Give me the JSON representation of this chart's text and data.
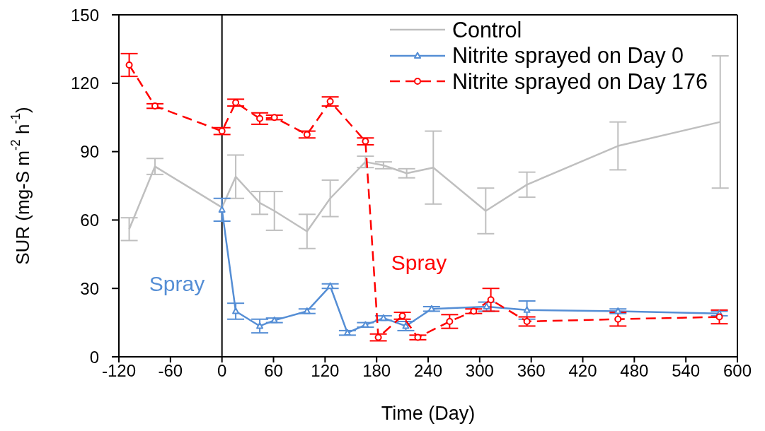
{
  "chart_data": {
    "type": "line",
    "xlabel": "Time (Day)",
    "ylabel": "SUR (mg-S m$^{-2}$ h$^{-1}$)",
    "xlim": [
      -120,
      600
    ],
    "xticks": [
      -120,
      -60,
      0,
      60,
      120,
      180,
      240,
      300,
      360,
      420,
      480,
      540,
      600
    ],
    "ylim": [
      0,
      150
    ],
    "yticks": [
      0,
      30,
      60,
      90,
      120,
      150
    ],
    "legend": "top right",
    "ref_lines": [
      {
        "axis": "x",
        "value": 0,
        "color": "#000000"
      }
    ],
    "annotations": [
      "Spray",
      "Spray"
    ],
    "series": [
      {
        "name": "Control",
        "color": "#bfbfbf",
        "marker": "none",
        "line_style": "solid",
        "x": [
          -108,
          -78,
          0,
          16,
          44,
          61,
          99,
          126,
          167,
          188,
          215,
          246,
          307,
          355,
          461,
          580
        ],
        "values": [
          56,
          83.5,
          65.5,
          79,
          67.5,
          64,
          55,
          69.5,
          85.5,
          84,
          80.5,
          83,
          64,
          75.5,
          92.5,
          103
        ],
        "errors": [
          5,
          3.5,
          null,
          9.5,
          5,
          8.5,
          7.5,
          8,
          2.5,
          1.5,
          2,
          16,
          10,
          5.5,
          10.5,
          29
        ]
      },
      {
        "name": "Nitrite sprayed on Day 0",
        "color": "#558ed5",
        "marker": "triangle",
        "line_style": "solid",
        "x": [
          0,
          16,
          44,
          61,
          99,
          126,
          146,
          167,
          188,
          214,
          244,
          308,
          355,
          461,
          579
        ],
        "values": [
          64.5,
          20,
          13.5,
          16,
          20,
          31,
          10.5,
          14,
          17,
          13.5,
          21,
          22,
          20.5,
          20,
          19
        ],
        "errors": [
          5,
          3.5,
          3,
          1,
          1,
          1,
          1,
          1,
          1,
          2,
          1,
          2,
          4,
          1,
          1
        ]
      },
      {
        "name": "Nitrite sprayed on Day 176",
        "color": "#ff0000",
        "marker": "circle",
        "line_style": "dashed",
        "x": [
          -108,
          -78,
          0,
          16,
          44,
          61,
          99,
          126,
          167,
          182,
          210,
          228,
          265,
          293,
          313,
          355,
          461,
          579
        ],
        "values": [
          128,
          110,
          99,
          111.5,
          104.5,
          105,
          97.5,
          112,
          94.5,
          8.5,
          18,
          8.5,
          15.5,
          20,
          25,
          15.5,
          16.5,
          17.5
        ],
        "errors": [
          5,
          1,
          1.5,
          1.5,
          2.5,
          1,
          1.5,
          2,
          1.5,
          1.5,
          1.5,
          1,
          3,
          1,
          5,
          2,
          3,
          3
        ]
      }
    ]
  }
}
